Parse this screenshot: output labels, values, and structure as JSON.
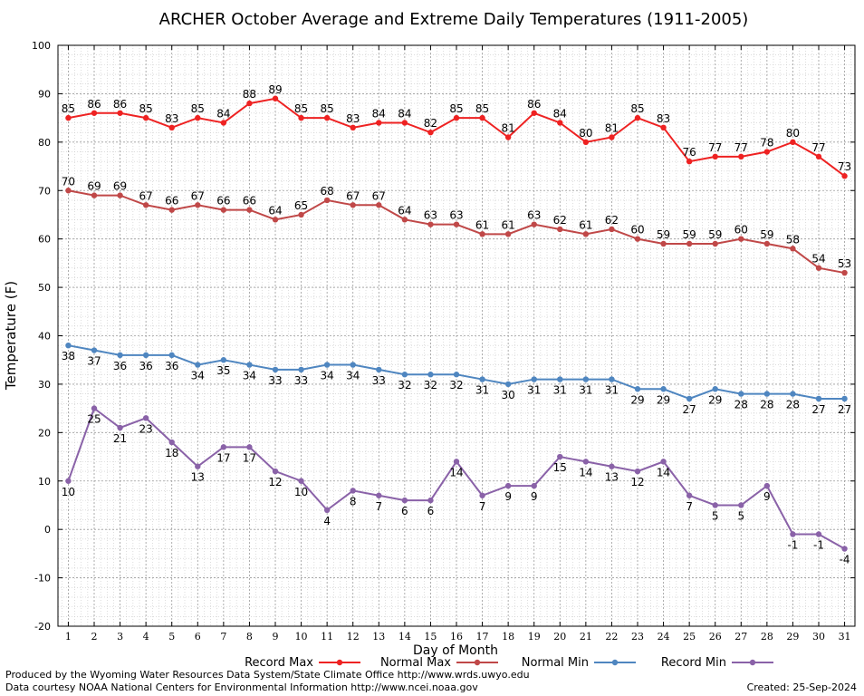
{
  "chart_data": {
    "type": "line",
    "title": "ARCHER October Average and Extreme Daily Temperatures (1911-2005)",
    "xlabel": "Day of Month",
    "ylabel": "Temperature (F)",
    "ylim": [
      -20,
      100
    ],
    "xlim": [
      0.6,
      31.4
    ],
    "yticks": [
      -20,
      -10,
      0,
      10,
      20,
      30,
      40,
      50,
      60,
      70,
      80,
      90,
      100
    ],
    "x": [
      1,
      2,
      3,
      4,
      5,
      6,
      7,
      8,
      9,
      10,
      11,
      12,
      13,
      14,
      15,
      16,
      17,
      18,
      19,
      20,
      21,
      22,
      23,
      24,
      25,
      26,
      27,
      28,
      29,
      30,
      31
    ],
    "grid": true,
    "legend_position": "bottom",
    "series": [
      {
        "name": "Record Max",
        "color": "#ee2222",
        "label_pos": "above",
        "values": [
          85,
          86,
          86,
          85,
          83,
          85,
          84,
          88,
          89,
          85,
          85,
          83,
          84,
          84,
          82,
          85,
          85,
          81,
          86,
          84,
          80,
          81,
          85,
          83,
          76,
          77,
          77,
          78,
          80,
          77,
          73
        ]
      },
      {
        "name": "Normal Max",
        "color": "#c04848",
        "label_pos": "above",
        "values": [
          70,
          69,
          69,
          67,
          66,
          67,
          66,
          66,
          64,
          65,
          68,
          67,
          67,
          64,
          63,
          63,
          61,
          61,
          63,
          62,
          61,
          62,
          60,
          59,
          59,
          59,
          60,
          59,
          58,
          54,
          53
        ]
      },
      {
        "name": "Normal Min",
        "color": "#4f86c0",
        "label_pos": "below",
        "values": [
          38,
          37,
          36,
          36,
          36,
          34,
          35,
          34,
          33,
          33,
          34,
          34,
          33,
          32,
          32,
          32,
          31,
          30,
          31,
          31,
          31,
          31,
          29,
          29,
          27,
          29,
          28,
          28,
          28,
          27,
          27
        ]
      },
      {
        "name": "Record Min",
        "color": "#8a62a8",
        "label_pos": "below",
        "values": [
          10,
          25,
          21,
          23,
          18,
          13,
          17,
          17,
          12,
          10,
          4,
          8,
          7,
          6,
          6,
          14,
          7,
          9,
          9,
          15,
          14,
          13,
          12,
          14,
          7,
          5,
          5,
          9,
          -1,
          -1,
          -4
        ]
      }
    ]
  },
  "footer": {
    "produced_by": "Produced by the Wyoming Water Resources Data System/State Climate Office http://www.wrds.uwyo.edu",
    "courtesy": "Data courtesy NOAA National Centers for Environmental Information http://www.ncei.noaa.gov",
    "created": "Created: 25-Sep-2024"
  }
}
